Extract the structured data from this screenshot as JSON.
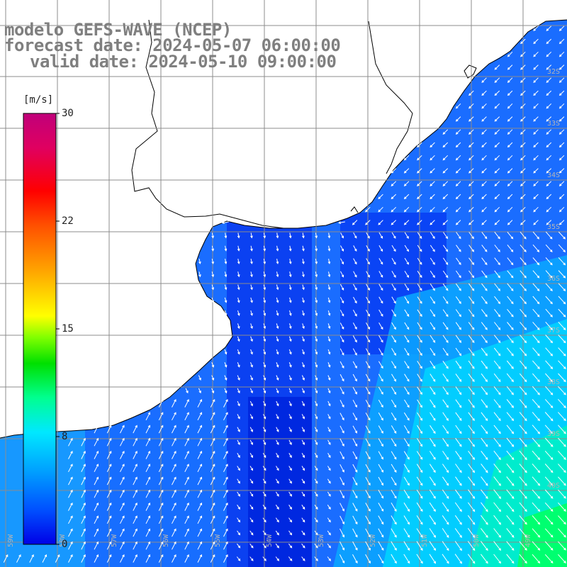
{
  "map": {
    "title": "modelo GEFS-WAVE (NCEP)",
    "forecast_date": "forecast date: 2024-05-07 06:00:00",
    "valid_date": "valid date: 2024-05-10 09:00:00",
    "variable": "wind speed and direction",
    "colors": {
      "land": "#ffffff",
      "coast": "#000000",
      "grid": "#8c8c8c",
      "arrow": "#ffffff"
    }
  },
  "colorbar": {
    "unit": "[m/s]",
    "min": 0,
    "max": 30,
    "ticks": [
      "30",
      "22",
      "15",
      "8",
      "0"
    ],
    "tick_values": [
      30,
      22,
      15,
      8,
      0
    ],
    "stops": [
      "#0000e6",
      "#0050ff",
      "#00a0ff",
      "#00e8ff",
      "#00ff90",
      "#00e000",
      "#80ff00",
      "#ffff00",
      "#ffa000",
      "#ff5000",
      "#ff0000",
      "#e00060",
      "#c0007a"
    ]
  },
  "grid_labels": {
    "latitudes": [
      "32S",
      "33S",
      "34S",
      "35S",
      "36S",
      "37S",
      "38S",
      "39S",
      "40S"
    ],
    "longitudes": [
      "59W",
      "58W",
      "57W",
      "56W",
      "55W",
      "54W",
      "53W",
      "52W",
      "51W",
      "50W",
      "49W"
    ]
  }
}
